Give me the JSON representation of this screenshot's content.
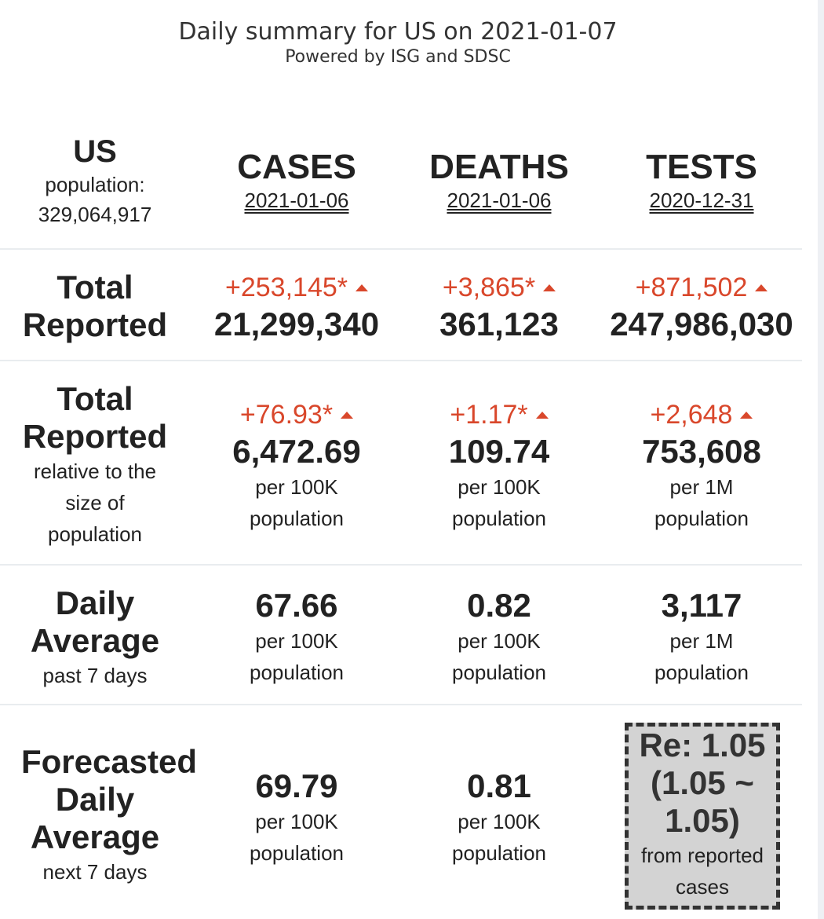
{
  "header": {
    "title": "Daily summary for US on 2021-01-07",
    "subtitle": "Powered by ISG and SDSC"
  },
  "region": {
    "name": "US",
    "population_label": "population:",
    "population_value": "329,064,917"
  },
  "columns": {
    "cases": {
      "label": "CASES",
      "date": "2021-01-06"
    },
    "deaths": {
      "label": "DEATHS",
      "date": "2021-01-06"
    },
    "tests": {
      "label": "TESTS",
      "date": "2020-12-31"
    }
  },
  "rows": {
    "total_reported": {
      "label_line1": "Total",
      "label_line2": "Reported",
      "cases": {
        "delta": "+253,145*",
        "value": "21,299,340"
      },
      "deaths": {
        "delta": "+3,865*",
        "value": "361,123"
      },
      "tests": {
        "delta": "+871,502",
        "value": "247,986,030"
      }
    },
    "relative": {
      "label_line1": "Total",
      "label_line2": "Reported",
      "label_sub1": "relative to the",
      "label_sub2": "size of",
      "label_sub3": "population",
      "cases": {
        "delta": "+76.93*",
        "value": "6,472.69",
        "unit1": "per 100K",
        "unit2": "population"
      },
      "deaths": {
        "delta": "+1.17*",
        "value": "109.74",
        "unit1": "per 100K",
        "unit2": "population"
      },
      "tests": {
        "delta": "+2,648",
        "value": "753,608",
        "unit1": "per 1M",
        "unit2": "population"
      }
    },
    "daily_average": {
      "label_line1": "Daily",
      "label_line2": "Average",
      "label_sub": "past 7 days",
      "cases": {
        "value": "67.66",
        "unit1": "per 100K",
        "unit2": "population"
      },
      "deaths": {
        "value": "0.82",
        "unit1": "per 100K",
        "unit2": "population"
      },
      "tests": {
        "value": "3,117",
        "unit1": "per 1M",
        "unit2": "population"
      }
    },
    "forecast": {
      "label_line1": "Forecasted",
      "label_line2": "Daily",
      "label_line3": "Average",
      "label_sub": "next 7 days",
      "cases": {
        "value": "69.79",
        "unit1": "per 100K",
        "unit2": "population"
      },
      "deaths": {
        "value": "0.81",
        "unit1": "per 100K",
        "unit2": "population"
      },
      "re": {
        "line1": "Re: 1.05",
        "line2": "(1.05 ~",
        "line3": "1.05)",
        "sub1": "from reported",
        "sub2": "cases"
      }
    }
  },
  "colors": {
    "delta": "#d9472b",
    "text": "#222222",
    "separator": "#e9ecef",
    "re_box_bg": "#d3d3d3"
  }
}
